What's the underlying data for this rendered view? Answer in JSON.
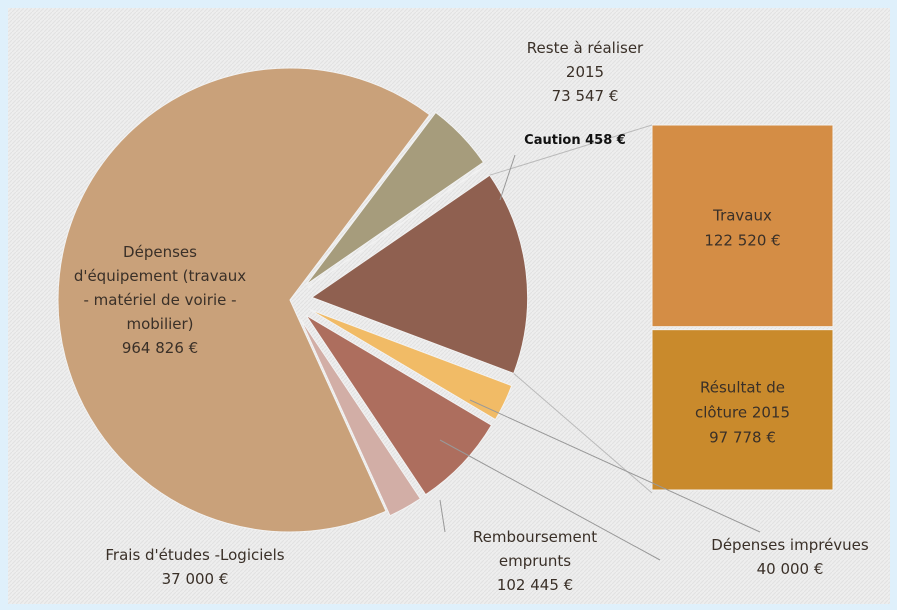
{
  "chart_data": {
    "type": "pie-of-bar",
    "categories": [
      [
        "Reste à réaliser",
        "2015"
      ],
      [
        "Caution"
      ],
      [
        "Dépenses imprévues"
      ],
      [
        "Remboursement",
        "emprunts"
      ],
      [
        "Frais d'études -Logiciels"
      ],
      [
        "Dépenses",
        "d'équipement (travaux",
        "- matériel de voirie -",
        "mobilier)"
      ]
    ],
    "values": [
      73547,
      458,
      40000,
      102445,
      37000,
      964826
    ],
    "value_labels": [
      "73 547 €",
      "458 €",
      "40 000 €",
      "102 445 €",
      "37 000 €",
      "964 826 €"
    ],
    "colors": [
      "#a69c7c",
      "#e3ad4c",
      "#f1bb66",
      "#ad6e5e",
      "#d2aea6",
      "#c9a17a"
    ],
    "bar": {
      "categories": [
        [
          "Travaux"
        ],
        [
          "Résultat de",
          "clôture 2015"
        ]
      ],
      "values": [
        122520,
        97778
      ],
      "value_labels": [
        "122 520 €",
        "97 778 €"
      ],
      "colors": [
        "#d48d45",
        "#c98a2c"
      ]
    },
    "other_color": "#8f6050"
  }
}
